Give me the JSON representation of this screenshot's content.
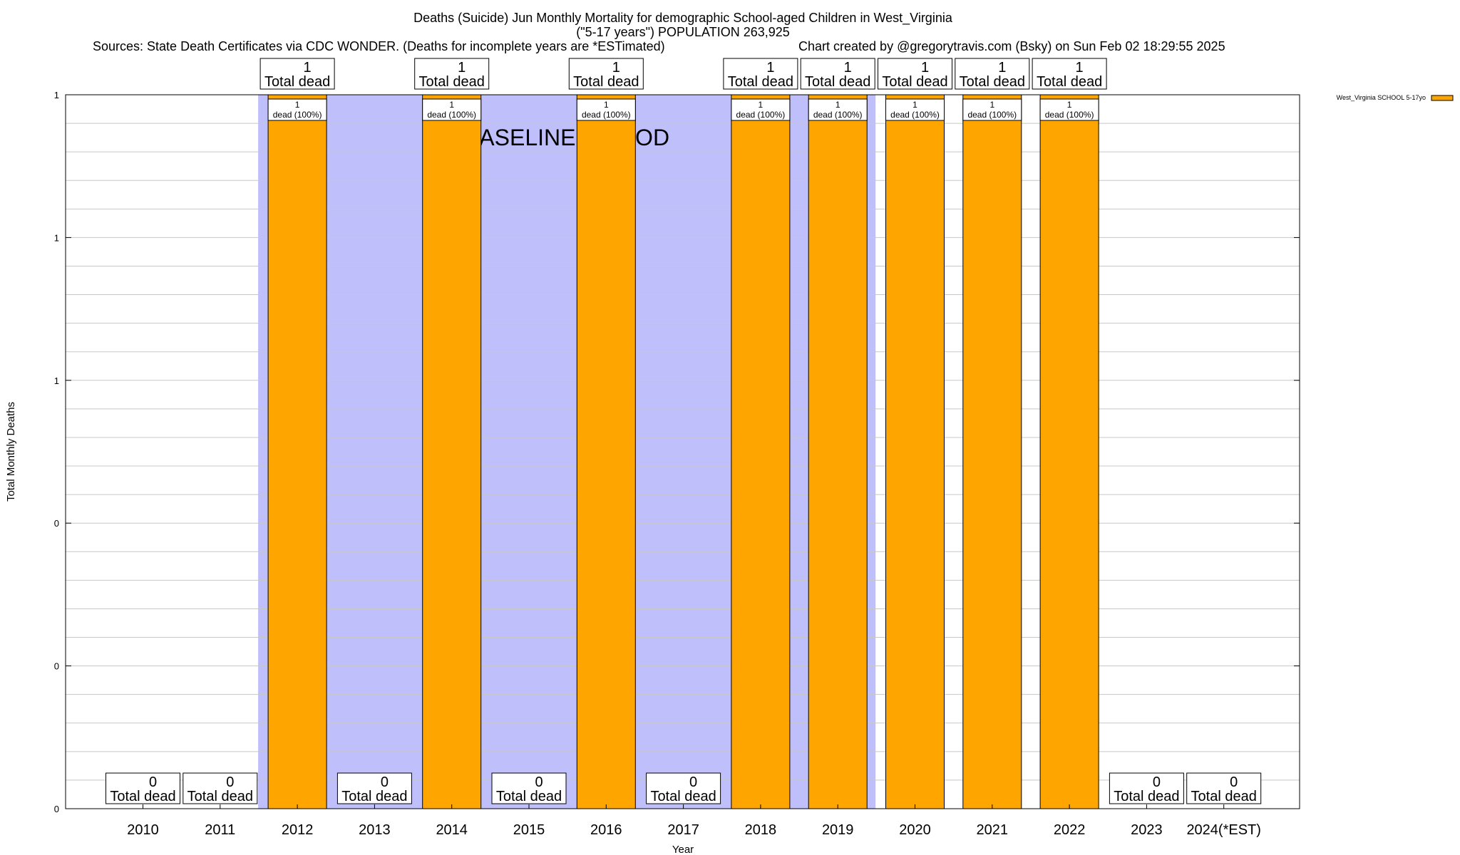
{
  "chart_data": {
    "type": "bar",
    "title_lines": [
      "Deaths (Suicide) Jun Monthly Mortality for demographic School-aged Children in West_Virginia",
      "(\"5-17 years\") POPULATION 263,925"
    ],
    "sources": "Sources: State Death Certificates via CDC WONDER. (Deaths for incomplete years are *ESTimated)",
    "credit": "Chart created by @gregorytravis.com (Bsky) on Sun Feb 02 18:29:55 2025",
    "xlabel": "Year",
    "ylabel": "Total Monthly Deaths",
    "ylim": [
      0,
      1
    ],
    "yticks": [
      {
        "value": 0,
        "label": "0"
      },
      {
        "value": 0.2,
        "label": "0"
      },
      {
        "value": 0.4,
        "label": "0"
      },
      {
        "value": 0.6,
        "label": "1"
      },
      {
        "value": 0.8,
        "label": "1"
      },
      {
        "value": 1,
        "label": "1"
      }
    ],
    "categories": [
      "2010",
      "2011",
      "2012",
      "2013",
      "2014",
      "2015",
      "2016",
      "2017",
      "2018",
      "2019",
      "2020",
      "2021",
      "2022",
      "2023",
      "2024(*EST)"
    ],
    "series": [
      {
        "name": "West_Virginia SCHOOL 5-17yo",
        "values": [
          0,
          0,
          1,
          0,
          1,
          0,
          1,
          0,
          1,
          1,
          1,
          1,
          1,
          0,
          0
        ]
      }
    ],
    "total_label": "Total dead",
    "segment_label": "dead (100%)",
    "baseline_label": "BASELINE PERIOD",
    "baseline_range": [
      "2012",
      "2019"
    ],
    "colors": {
      "bar": "#ffa500",
      "baseline": "#bfbffc",
      "grid": "#c8c8c8"
    },
    "grid": true,
    "legend_position": "top-right"
  }
}
